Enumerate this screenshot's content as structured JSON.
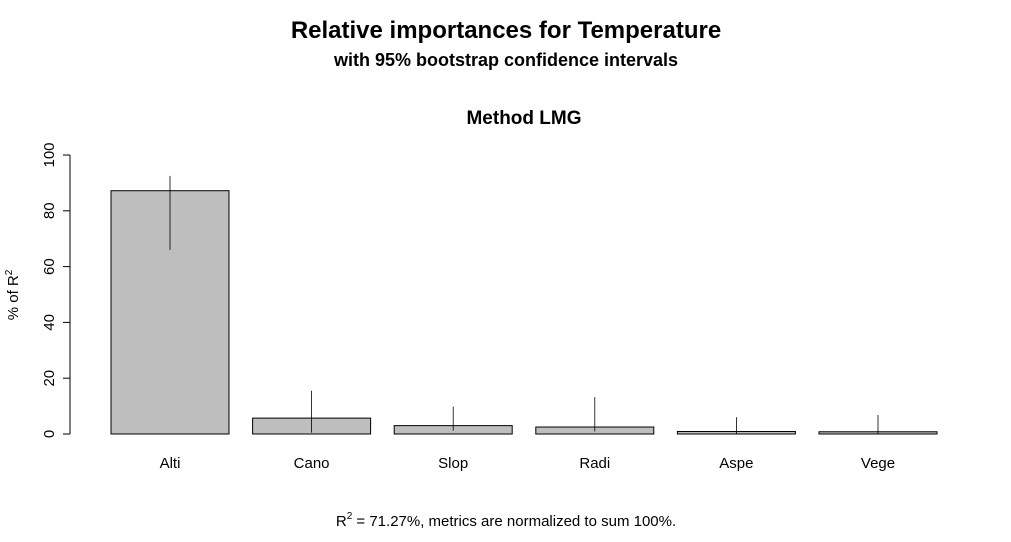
{
  "title": "Relative importances for Temperature",
  "subtitle": "with 95% bootstrap confidence intervals",
  "chart_data": {
    "type": "bar",
    "panel_title": "Method LMG",
    "ylabel": {
      "prefix": "% of R",
      "superscript": "2"
    },
    "ylim": [
      0,
      100
    ],
    "yticks": [
      0,
      20,
      40,
      60,
      80,
      100
    ],
    "ytick_labels": [
      "0",
      "20",
      "40",
      "60",
      "80",
      "100"
    ],
    "categories": [
      "Alti",
      "Cano",
      "Slop",
      "Radi",
      "Aspe",
      "Vege"
    ],
    "values": [
      87.2,
      5.7,
      3.0,
      2.5,
      0.9,
      0.8
    ],
    "ci_lower": [
      66,
      0.5,
      1.2,
      0.9,
      0.1,
      0.1
    ],
    "ci_upper": [
      92.5,
      15.5,
      9.8,
      13.2,
      6.0,
      6.8
    ],
    "bar_color": "#bebebe",
    "grid": false
  },
  "footer": {
    "r_symbol": "R",
    "superscript": "2",
    "text": " = 71.27%, metrics are normalized to sum 100%."
  }
}
